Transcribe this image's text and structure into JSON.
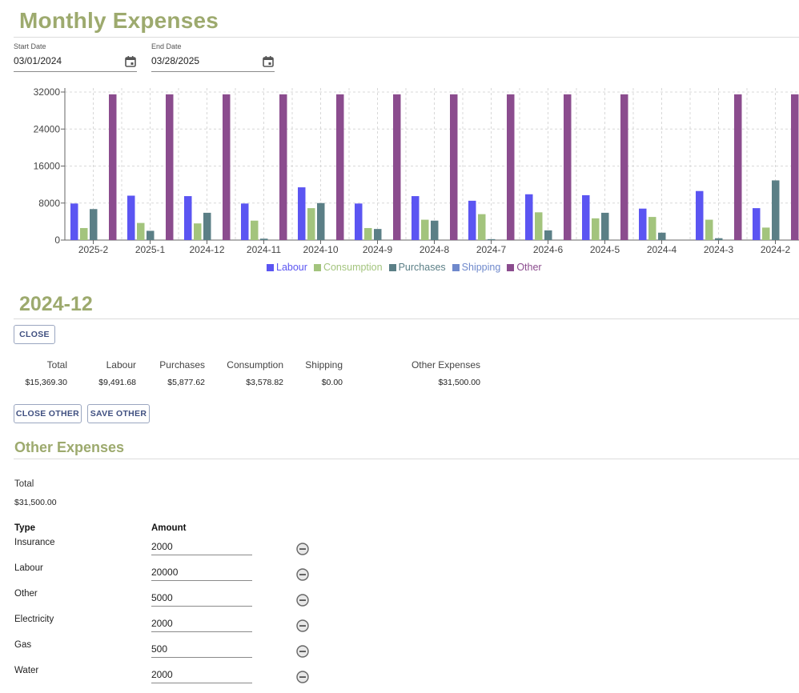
{
  "page": {
    "title": "Monthly Expenses",
    "start_label": "Start Date",
    "start_value": "03/01/2024",
    "end_label": "End Date",
    "end_value": "03/28/2025",
    "icons": {
      "calendar": "calendar-icon",
      "remove": "minus-circle-icon"
    }
  },
  "chart_data": {
    "type": "bar",
    "categories": [
      "2025-2",
      "2025-1",
      "2024-12",
      "2024-11",
      "2024-10",
      "2024-9",
      "2024-8",
      "2024-7",
      "2024-6",
      "2024-5",
      "2024-4",
      "2024-3",
      "2024-2"
    ],
    "ylim": [
      0,
      32000
    ],
    "yticks": [
      0,
      8000,
      16000,
      24000,
      32000
    ],
    "grid": true,
    "legend_position": "bottom",
    "series": [
      {
        "name": "Labour",
        "color": "#5b55f2",
        "values": [
          7900,
          9600,
          9500,
          7900,
          11400,
          7900,
          9500,
          8500,
          9900,
          9700,
          6800,
          10600,
          6900
        ]
      },
      {
        "name": "Consumption",
        "color": "#a3c47d",
        "values": [
          2600,
          3700,
          3600,
          4200,
          6900,
          2600,
          4400,
          5600,
          6000,
          4700,
          5000,
          4400,
          2700
        ]
      },
      {
        "name": "Purchases",
        "color": "#5b7f86",
        "values": [
          6700,
          2000,
          5900,
          300,
          8000,
          2400,
          4200,
          200,
          2100,
          5900,
          1600,
          400,
          12900
        ]
      },
      {
        "name": "Shipping",
        "color": "#6f89cc",
        "values": [
          0,
          0,
          0,
          0,
          0,
          0,
          0,
          0,
          0,
          0,
          0,
          0,
          0
        ]
      },
      {
        "name": "Other",
        "color": "#8b4c8e",
        "values": [
          31500,
          31500,
          31500,
          31500,
          31500,
          31500,
          31500,
          31500,
          31500,
          31500,
          0,
          31500,
          31500
        ]
      }
    ]
  },
  "detail": {
    "title": "2024-12",
    "close_button": "CLOSE",
    "summary": {
      "headers": [
        "Total",
        "Labour",
        "Purchases",
        "Consumption",
        "Shipping",
        "Other Expenses"
      ],
      "values": [
        "$15,369.30",
        "$9,491.68",
        "$5,877.62",
        "$3,578.82",
        "$0.00",
        "$31,500.00"
      ]
    },
    "close_other_button": "CLOSE OTHER",
    "save_other_button": "SAVE OTHER"
  },
  "other": {
    "title": "Other Expenses",
    "total_label": "Total",
    "total_value": "$31,500.00",
    "type_header": "Type",
    "amount_header": "Amount",
    "rows": [
      {
        "type": "Insurance",
        "amount": "2000"
      },
      {
        "type": "Labour",
        "amount": "20000"
      },
      {
        "type": "Other",
        "amount": "5000"
      },
      {
        "type": "Electricity",
        "amount": "2000"
      },
      {
        "type": "Gas",
        "amount": "500"
      },
      {
        "type": "Water",
        "amount": "2000"
      }
    ]
  }
}
